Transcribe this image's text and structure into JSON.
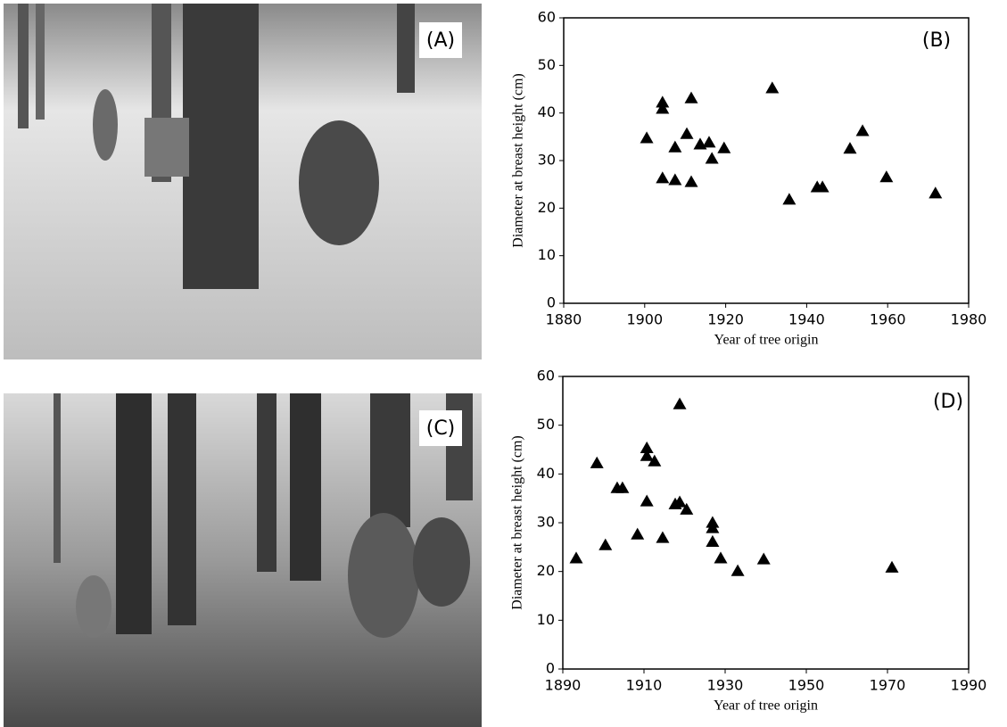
{
  "photo_labels": [
    "(A)",
    "(C)"
  ],
  "chart_data": [
    {
      "type": "scatter",
      "annotation": "(B)",
      "x_label": "Year of tree origin",
      "y_label": "Diameter at breast height (cm)",
      "marker": "triangle",
      "color": "#000000",
      "x": [
        1900.5,
        1904.4,
        1904.4,
        1904.4,
        1907.5,
        1907.5,
        1910.4,
        1911.5,
        1911.5,
        1913.7,
        1915.9,
        1916.6,
        1919.6,
        1931.5,
        1935.7,
        1942.6,
        1943.9,
        1950.7,
        1953.8,
        1959.7,
        1971.8
      ],
      "values": [
        34.7,
        42.2,
        40.9,
        26.3,
        32.8,
        25.9,
        35.6,
        43.1,
        25.5,
        33.4,
        33.8,
        30.4,
        32.6,
        45.2,
        21.8,
        24.4,
        24.4,
        32.5,
        36.2,
        26.5,
        23.1
      ],
      "xlim": [
        1880,
        1980
      ],
      "xticks": [
        1880,
        1900,
        1920,
        1940,
        1960,
        1980
      ],
      "ylim": [
        0,
        60
      ],
      "yticks": [
        0,
        10,
        20,
        30,
        40,
        50,
        60
      ]
    },
    {
      "type": "scatter",
      "annotation": "(D)",
      "x_label": "Year of tree origin",
      "y_label": "Diameter at breast height (cm)",
      "marker": "triangle",
      "color": "#000000",
      "x": [
        1893.3,
        1898.4,
        1900.5,
        1903.4,
        1904.7,
        1908.4,
        1910.7,
        1910.7,
        1910.7,
        1912.6,
        1914.6,
        1917.7,
        1918.8,
        1918.8,
        1920.5,
        1926.9,
        1926.9,
        1926.9,
        1928.9,
        1933.1,
        1939.5,
        1971.1
      ],
      "values": [
        22.7,
        42.2,
        25.4,
        37.1,
        37.1,
        27.6,
        45.3,
        43.7,
        34.4,
        42.6,
        26.9,
        33.8,
        54.3,
        34.2,
        32.7,
        30.0,
        28.9,
        26.1,
        22.7,
        20.1,
        22.5,
        20.8
      ],
      "xlim": [
        1890,
        1990
      ],
      "xticks": [
        1890,
        1910,
        1930,
        1950,
        1970,
        1990
      ],
      "ylim": [
        0,
        60
      ],
      "yticks": [
        0,
        10,
        20,
        30,
        40,
        50,
        60
      ]
    }
  ]
}
